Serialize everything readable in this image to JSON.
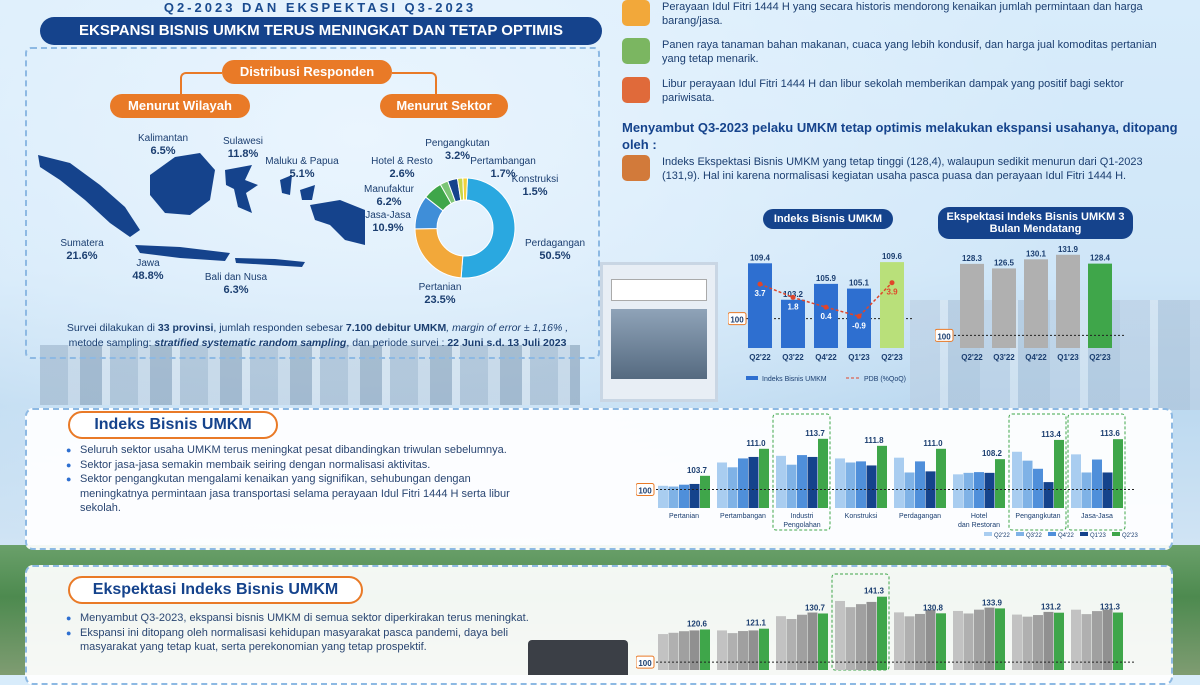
{
  "header": {
    "subtitle": "Q2-2023 DAN EKSPEKTASI Q3-2023",
    "banner": "EKSPANSI BISNIS UMKM TERUS MENINGKAT DAN TETAP OPTIMIS"
  },
  "distribution": {
    "title": "Distribusi Responden",
    "by_region_label": "Menurut Wilayah",
    "by_sector_label": "Menurut Sektor",
    "regions": [
      {
        "name": "Kalimantan",
        "pct": "6.5%"
      },
      {
        "name": "Sulawesi",
        "pct": "11.8%"
      },
      {
        "name": "Maluku & Papua",
        "pct": "5.1%"
      },
      {
        "name": "Sumatera",
        "pct": "21.6%"
      },
      {
        "name": "Jawa",
        "pct": "48.8%"
      },
      {
        "name": "Bali dan Nusa",
        "pct": "6.3%"
      }
    ],
    "sector_labels": [
      {
        "name": "Pengangkutan",
        "pct": "3.2%"
      },
      {
        "name": "Pertambangan",
        "pct": "1.7%"
      },
      {
        "name": "Hotel & Resto",
        "pct": "2.6%"
      },
      {
        "name": "Konstruksi",
        "pct": "1.5%"
      },
      {
        "name": "Manufaktur",
        "pct": "6.2%"
      },
      {
        "name": "Jasa-Jasa",
        "pct": "10.9%"
      },
      {
        "name": "Perdagangan",
        "pct": "50.5%"
      },
      {
        "name": "Pertanian",
        "pct": "23.5%"
      }
    ],
    "survey_note_1": "Survei dilakukan di ",
    "survey_note_2": "33 provinsi",
    "survey_note_3": ", jumlah responden sebesar ",
    "survey_note_4": "7.100 debitur UMKM",
    "survey_note_5": ", margin of error ± 1,16% ,",
    "survey_note_6": "metode sampling: ",
    "survey_note_7": "stratified systematic random sampling",
    "survey_note_8": ", dan periode survei : ",
    "survey_note_9": "22 Juni s.d. 13 Juli 2023"
  },
  "drivers": [
    {
      "text": "Perayaan Idul Fitri 1444 H yang secara historis mendorong kenaikan jumlah permintaan dan harga barang/jasa.",
      "icon": "festive-icon"
    },
    {
      "text": "Panen raya tanaman bahan makanan, cuaca yang lebih kondusif, dan harga jual komoditas pertanian yang tetap menarik.",
      "icon": "harvest-icon"
    },
    {
      "text": "Libur perayaan Idul Fitri 1444 H dan libur sekolah memberikan dampak yang positif bagi sektor pariwisata.",
      "icon": "tourism-icon"
    }
  ],
  "outlook": {
    "heading": "Menyambut Q3-2023 pelaku UMKM tetap optimis melakukan ekspansi usahanya, ditopang oleh :",
    "text": "Indeks Ekspektasi Bisnis UMKM yang tetap tinggi (128,4), walaupun sedikit menurun dari Q1-2023 (131,9). Hal ini karena normalisasi kegiatan usaha pasca puasa dan perayaan Idul Fitri 1444 H."
  },
  "chart_titles": {
    "ibu": "Indeks Bisnis UMKM",
    "eibu": "Ekspektasi  Indeks Bisnis UMKM 3 Bulan Mendatang",
    "legend_ibu": "Indeks Bisnis UMKM",
    "legend_pdb": "PDB (%QoQ)"
  },
  "section_ibu": {
    "title": "Indeks Bisnis UMKM",
    "bullets": [
      "Seluruh sektor usaha UMKM terus meningkat pesat dibandingkan triwulan sebelumnya.",
      "Sektor jasa-jasa semakin membaik seiring dengan normalisasi aktivitas.",
      "Sektor pengangkutan mengalami kenaikan yang signifikan, sehubungan dengan meningkatnya permintaan jasa transportasi selama perayaan Idul Fitri 1444 H serta libur sekolah."
    ]
  },
  "section_eibu": {
    "title": "Ekspektasi Indeks Bisnis UMKM",
    "bullets": [
      "Menyambut Q3-2023, ekspansi bisnis UMKM di semua sektor diperkirakan terus meningkat.",
      "Ekspansi ini ditopang oleh normalisasi kehidupan masyarakat pasca pandemi, daya beli masyarakat yang tetap kuat, serta perekonomian yang tetap prospektif."
    ]
  },
  "colors": {
    "navy": "#15438c",
    "orange": "#e97a27",
    "bar_blue": "#2e6fd0",
    "bar_light": "#9bc3ec",
    "bar_green": "#3fa64a",
    "bar_grey": "#b0b0b0"
  },
  "chart_data": [
    {
      "type": "bar",
      "title": "Indeks Bisnis UMKM",
      "categories": [
        "Q2'22",
        "Q3'22",
        "Q4'22",
        "Q1'23",
        "Q2'23"
      ],
      "series": [
        {
          "name": "Indeks Bisnis UMKM",
          "values": [
            109.4,
            103.2,
            105.9,
            105.1,
            109.6
          ]
        },
        {
          "name": "PDB (%QoQ)",
          "values": [
            3.7,
            1.8,
            0.4,
            -0.9,
            3.9
          ]
        }
      ],
      "reference_line": 100
    },
    {
      "type": "bar",
      "title": "Ekspektasi  Indeks Bisnis UMKM 3 Bulan Mendatang",
      "categories": [
        "Q2'22",
        "Q3'22",
        "Q4'22",
        "Q1'23",
        "Q2'23"
      ],
      "values": [
        128.3,
        126.5,
        130.1,
        131.9,
        128.4
      ],
      "reference_line": 100
    },
    {
      "type": "pie",
      "title": "Menurut Sektor",
      "categories": [
        "Perdagangan",
        "Pertanian",
        "Jasa-Jasa",
        "Manufaktur",
        "Hotel & Resto",
        "Pengangkutan",
        "Pertambangan",
        "Konstruksi"
      ],
      "values": [
        50.5,
        23.5,
        10.9,
        6.2,
        2.6,
        3.2,
        1.7,
        1.5
      ]
    },
    {
      "type": "bar",
      "title": "Indeks Bisnis UMKM per Sektor",
      "categories": [
        "Pertanian",
        "Pertambangan",
        "Industri Pengolahan",
        "Konstruksi",
        "Perdagangan",
        "Hotel dan Restoran",
        "Pengangkutan",
        "Jasa-Jasa"
      ],
      "series_names": [
        "Q2'22",
        "Q3'22",
        "Q4'22",
        "Q1'23",
        "Q2'23"
      ],
      "values": [
        [
          101.0,
          100.8,
          101.3,
          101.5,
          103.7
        ],
        [
          107.3,
          106.0,
          108.4,
          108.8,
          111.0
        ],
        [
          109.1,
          106.7,
          109.3,
          108.8,
          113.7
        ],
        [
          108.4,
          107.3,
          107.6,
          106.5,
          111.8
        ],
        [
          108.6,
          104.6,
          107.6,
          104.9,
          111.0
        ],
        [
          104.1,
          104.5,
          104.7,
          104.5,
          108.2
        ],
        [
          110.2,
          107.8,
          105.6,
          102.0,
          113.4
        ],
        [
          109.5,
          104.6,
          108.1,
          104.6,
          113.6
        ]
      ],
      "labels": [
        "103.7",
        "111.0",
        "113.7",
        "111.8",
        "111.0",
        "108.2",
        "113.4",
        "113.6"
      ],
      "reference_line": 100
    },
    {
      "type": "bar",
      "title": "Ekspektasi Indeks Bisnis UMKM per Sektor",
      "categories": [
        "Pertanian",
        "Pertambangan",
        "Industri Pengolahan",
        "Konstruksi",
        "Perdagangan",
        "Hotel dan Restoran",
        "Pengangkutan",
        "Jasa-Jasa"
      ],
      "values": [
        [
          117.7,
          118.5,
          119.5,
          120.0,
          120.6
        ],
        [
          120.0,
          118.3,
          119.6,
          120.0,
          121.1
        ],
        [
          129.0,
          127.2,
          129.9,
          131.3,
          130.7
        ],
        [
          138.6,
          134.7,
          136.6,
          138.0,
          141.3
        ],
        [
          131.4,
          128.9,
          130.4,
          132.9,
          130.8
        ],
        [
          132.3,
          130.7,
          133.1,
          134.4,
          133.9
        ],
        [
          130.0,
          128.7,
          129.7,
          131.7,
          131.2
        ],
        [
          133.1,
          130.3,
          132.2,
          133.1,
          131.3
        ]
      ],
      "labels": [
        "120.6",
        "121.1",
        "130.7",
        "141.3",
        "130.8",
        "133.9",
        "131.2",
        "131.3"
      ],
      "reference_line": 100
    }
  ]
}
